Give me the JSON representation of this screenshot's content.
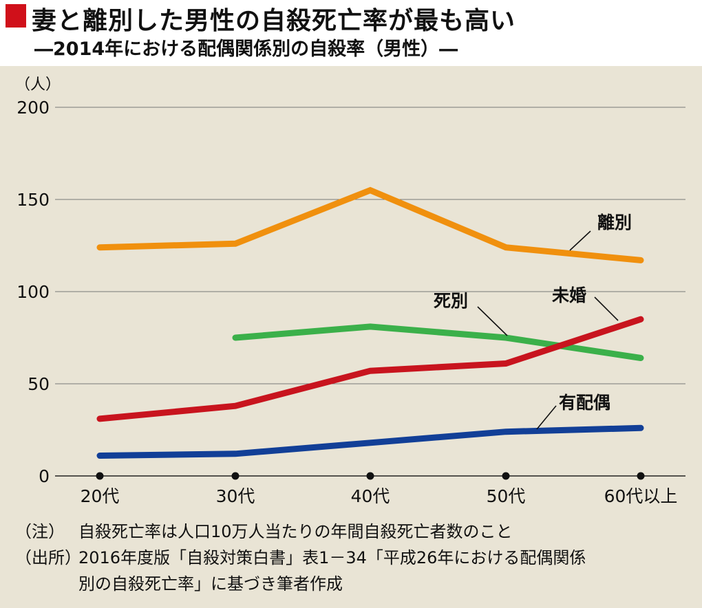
{
  "header": {
    "title": "妻と離別した男性の自殺死亡率が最も高い",
    "subtitle": "―2014年における配偶関係別の自殺率（男性）―"
  },
  "chart_data": {
    "type": "line",
    "ylabel": "（人）",
    "ylim": [
      0,
      200
    ],
    "y_ticks": [
      "0",
      "50",
      "100",
      "150",
      "200"
    ],
    "categories": [
      "20代",
      "30代",
      "40代",
      "50代",
      "60代以上"
    ],
    "grid": true,
    "series": [
      {
        "name": "離別",
        "color": "#f0900e",
        "values": [
          124,
          126,
          155,
          124,
          117
        ]
      },
      {
        "name": "死別",
        "color": "#3bb04a",
        "values": [
          null,
          75,
          81,
          75,
          64
        ]
      },
      {
        "name": "未婚",
        "color": "#c8141e",
        "values": [
          31,
          38,
          57,
          61,
          85
        ]
      },
      {
        "name": "有配偶",
        "color": "#123f97",
        "values": [
          11,
          12,
          18,
          24,
          26
        ]
      }
    ]
  },
  "notes": {
    "note_label": "（注）",
    "note_text": "自殺死亡率は人口10万人当たりの年間自殺死亡者数のこと",
    "source_label": "（出所）",
    "source_line1": "2016年度版「自殺対策白書」表1－34「平成26年における配偶関係",
    "source_line2": "別の自殺死亡率」に基づき筆者作成"
  }
}
